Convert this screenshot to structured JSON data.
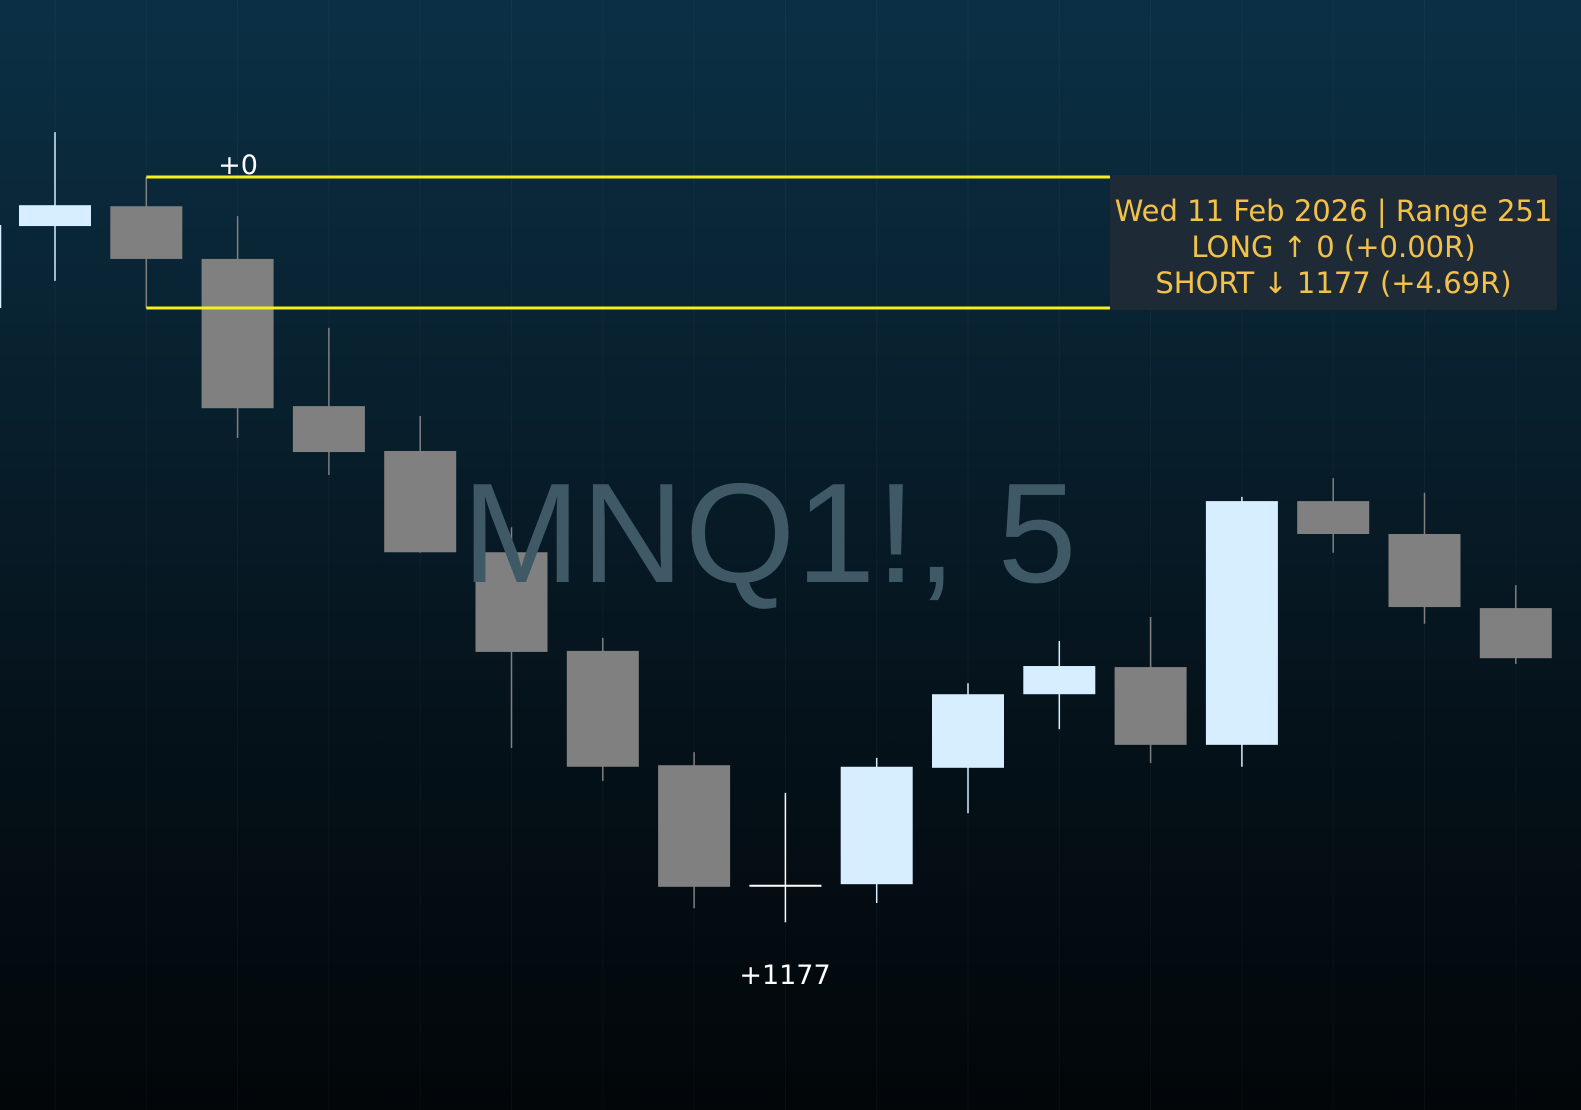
{
  "chart_data": {
    "type": "candlestick",
    "symbol_watermark": "MNQ1!, 5",
    "grid": "vertical only, faint",
    "price_axis_shown": false,
    "price_units_note": "points relative to range low",
    "colors": {
      "up": "#d6eeff",
      "down": "#808080",
      "range_lines": "#f5ef1e",
      "tooltip_text": "#f2c14a",
      "tooltip_bg": "#1e2a36"
    },
    "range": {
      "high": 251,
      "low": 0
    },
    "candles": [
      {
        "o": 157,
        "h": 337,
        "l": 52,
        "c": 197
      },
      {
        "o": 195,
        "h": 251,
        "l": 0,
        "c": 94
      },
      {
        "o": 94,
        "h": 176,
        "l": -249,
        "c": -192
      },
      {
        "o": -188,
        "h": -38,
        "l": -320,
        "c": -276
      },
      {
        "o": -274,
        "h": -207,
        "l": -469,
        "c": -468
      },
      {
        "o": -468,
        "h": -420,
        "l": -843,
        "c": -659
      },
      {
        "o": -657,
        "h": -632,
        "l": -906,
        "c": -879
      },
      {
        "o": -876,
        "h": -851,
        "l": -1150,
        "c": -1109
      },
      {
        "o": -1107,
        "h": -929,
        "l": -1177,
        "c": -1107
      },
      {
        "o": -1104,
        "h": -862,
        "l": -1140,
        "c": -879
      },
      {
        "o": -881,
        "h": -719,
        "l": -968,
        "c": -740
      },
      {
        "o": -740,
        "h": -638,
        "l": -807,
        "c": -686
      },
      {
        "o": -688,
        "h": -592,
        "l": -872,
        "c": -837
      },
      {
        "o": -837,
        "h": -362,
        "l": -879,
        "c": -370
      },
      {
        "o": -370,
        "h": -326,
        "l": -469,
        "c": -433
      },
      {
        "o": -433,
        "h": -354,
        "l": -605,
        "c": -573
      },
      {
        "o": -575,
        "h": -531,
        "l": -682,
        "c": -671
      }
    ],
    "annotations": {
      "long_label": "+0",
      "short_label": "+1177"
    }
  },
  "tooltip": {
    "line1": "Wed 11 Feb 2026 | Range 251",
    "line2": "LONG ↑ 0 (+0.00R)",
    "line3": "SHORT ↓ 1177 (+4.69R)"
  }
}
